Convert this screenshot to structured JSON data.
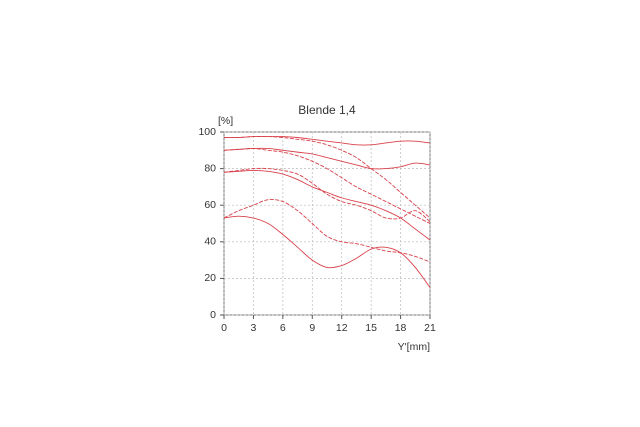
{
  "chart_data": {
    "type": "line",
    "title": "Blende 1,4",
    "ylabel": "[%]",
    "xlabel": "Y'[mm]",
    "x": [
      0,
      1.5,
      3,
      4.5,
      6,
      7.5,
      9,
      10.5,
      12,
      13.5,
      15,
      16.5,
      18,
      19.5,
      21
    ],
    "series": [
      {
        "color": "#d9414b",
        "style": "solid",
        "values": [
          97,
          97,
          97.5,
          97.5,
          97.5,
          97,
          96,
          95,
          94,
          93,
          93,
          94,
          95,
          95,
          94
        ]
      },
      {
        "color": "#d9414b",
        "style": "dashed",
        "values": [
          97,
          97,
          97.5,
          97.5,
          97,
          96,
          95,
          93,
          90,
          86,
          80,
          74,
          67,
          60,
          53
        ]
      },
      {
        "color": "#d9414b",
        "style": "solid",
        "values": [
          90,
          90.5,
          91,
          91,
          90,
          89,
          88,
          86,
          84,
          82,
          80,
          80,
          81,
          83,
          82
        ]
      },
      {
        "color": "#d9414b",
        "style": "dashed",
        "values": [
          90,
          90.5,
          91,
          90,
          89,
          87,
          84,
          80,
          75,
          70,
          66,
          62,
          58,
          54,
          50
        ]
      },
      {
        "color": "#d9414b",
        "style": "dashed",
        "values": [
          78,
          79,
          80,
          80,
          79,
          77,
          72,
          66,
          62,
          60,
          57,
          53,
          53,
          57,
          51
        ]
      },
      {
        "color": "#d9414b",
        "style": "solid",
        "values": [
          78,
          78.5,
          79,
          78.5,
          77,
          74,
          70,
          67,
          64,
          62,
          60,
          57,
          53,
          47,
          41
        ]
      },
      {
        "color": "#d9414b",
        "style": "dashed",
        "values": [
          53,
          57,
          60,
          63,
          62,
          57,
          50,
          43,
          40,
          39,
          37,
          35,
          34,
          32,
          29
        ]
      },
      {
        "color": "#d9414b",
        "style": "solid",
        "values": [
          53,
          54,
          53,
          50,
          44,
          37,
          30,
          26,
          27,
          31,
          36,
          37,
          34,
          26,
          15
        ]
      }
    ],
    "xlim": [
      0,
      21
    ],
    "xticks": [
      0,
      3,
      6,
      9,
      12,
      15,
      18,
      21
    ],
    "ylim": [
      0,
      100
    ],
    "yticks": [
      0,
      20,
      40,
      60,
      80,
      100
    ],
    "grid": true
  }
}
